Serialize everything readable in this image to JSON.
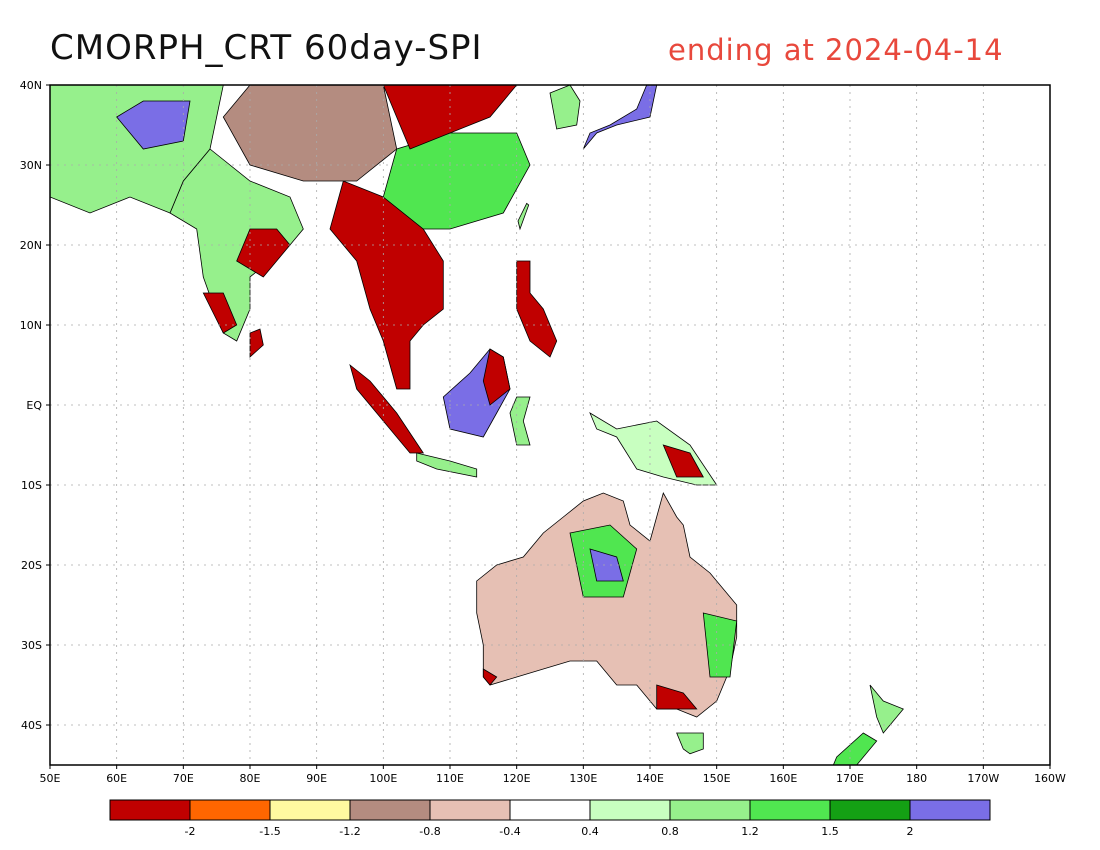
{
  "title": "CMORPH_CRT 60day-SPI",
  "subtitle": "ending at 2024-04-14",
  "colors": {
    "frame": "#000000",
    "grid": "#aaaaaa",
    "title_right": "#e8483c",
    "coast": "#000000"
  },
  "map": {
    "lon_range": [
      50,
      200
    ],
    "lat_range": [
      -45,
      40
    ],
    "x_ticks": [
      {
        "lon": 50,
        "label": "50E"
      },
      {
        "lon": 60,
        "label": "60E"
      },
      {
        "lon": 70,
        "label": "70E"
      },
      {
        "lon": 80,
        "label": "80E"
      },
      {
        "lon": 90,
        "label": "90E"
      },
      {
        "lon": 100,
        "label": "100E"
      },
      {
        "lon": 110,
        "label": "110E"
      },
      {
        "lon": 120,
        "label": "120E"
      },
      {
        "lon": 130,
        "label": "130E"
      },
      {
        "lon": 140,
        "label": "140E"
      },
      {
        "lon": 150,
        "label": "150E"
      },
      {
        "lon": 160,
        "label": "160E"
      },
      {
        "lon": 170,
        "label": "170E"
      },
      {
        "lon": 180,
        "label": "180"
      },
      {
        "lon": 190,
        "label": "170W"
      },
      {
        "lon": 200,
        "label": "160W"
      }
    ],
    "y_ticks": [
      {
        "lat": 40,
        "label": "40N"
      },
      {
        "lat": 30,
        "label": "30N"
      },
      {
        "lat": 20,
        "label": "20N"
      },
      {
        "lat": 10,
        "label": "10N"
      },
      {
        "lat": 0,
        "label": "EQ"
      },
      {
        "lat": -10,
        "label": "10S"
      },
      {
        "lat": -20,
        "label": "20S"
      },
      {
        "lat": -30,
        "label": "30S"
      },
      {
        "lat": -40,
        "label": "40S"
      }
    ]
  },
  "legend": {
    "colors": [
      "#c00000",
      "#ff6600",
      "#fffaa0",
      "#b48c80",
      "#e6c0b4",
      "#ffffff",
      "#c8ffc0",
      "#96f08c",
      "#50e650",
      "#14a014",
      "#7a6ee6"
    ],
    "labels": [
      "-2",
      "-1.5",
      "-1.2",
      "-0.8",
      "-0.4",
      "0.4",
      "0.8",
      "1.2",
      "1.5",
      "2"
    ]
  },
  "regions": [
    {
      "name": "india",
      "fill": "#96f08c",
      "points": [
        [
          68,
          24
        ],
        [
          72,
          22
        ],
        [
          73,
          16
        ],
        [
          76,
          9
        ],
        [
          78,
          8
        ],
        [
          80,
          12
        ],
        [
          80,
          16
        ],
        [
          86,
          20
        ],
        [
          88,
          22
        ],
        [
          86,
          26
        ],
        [
          80,
          28
        ],
        [
          74,
          32
        ],
        [
          70,
          28
        ]
      ]
    },
    {
      "name": "india-east-dry",
      "fill": "#c00000",
      "points": [
        [
          78,
          18
        ],
        [
          82,
          16
        ],
        [
          86,
          20
        ],
        [
          84,
          22
        ],
        [
          80,
          22
        ]
      ]
    },
    {
      "name": "india-south-dry",
      "fill": "#c00000",
      "points": [
        [
          73,
          14
        ],
        [
          76,
          9
        ],
        [
          78,
          10
        ],
        [
          76,
          14
        ]
      ]
    },
    {
      "name": "indochina",
      "fill": "#c00000",
      "points": [
        [
          92,
          22
        ],
        [
          96,
          18
        ],
        [
          98,
          12
        ],
        [
          100,
          8
        ],
        [
          102,
          2
        ],
        [
          104,
          2
        ],
        [
          104,
          8
        ],
        [
          106,
          10
        ],
        [
          109,
          12
        ],
        [
          109,
          18
        ],
        [
          106,
          22
        ],
        [
          100,
          26
        ],
        [
          94,
          28
        ]
      ]
    },
    {
      "name": "china-south",
      "fill": "#50e650",
      "points": [
        [
          100,
          26
        ],
        [
          106,
          22
        ],
        [
          110,
          22
        ],
        [
          118,
          24
        ],
        [
          122,
          30
        ],
        [
          120,
          34
        ],
        [
          110,
          34
        ],
        [
          102,
          32
        ]
      ]
    },
    {
      "name": "china-north-dry",
      "fill": "#c00000",
      "points": [
        [
          100,
          40
        ],
        [
          104,
          32
        ],
        [
          110,
          34
        ],
        [
          116,
          36
        ],
        [
          120,
          40
        ]
      ]
    },
    {
      "name": "tibet",
      "fill": "#b48c80",
      "points": [
        [
          76,
          36
        ],
        [
          80,
          30
        ],
        [
          88,
          28
        ],
        [
          96,
          28
        ],
        [
          102,
          32
        ],
        [
          100,
          40
        ],
        [
          80,
          40
        ]
      ]
    },
    {
      "name": "arabia-iran",
      "fill": "#96f08c",
      "points": [
        [
          50,
          40
        ],
        [
          50,
          26
        ],
        [
          56,
          24
        ],
        [
          62,
          26
        ],
        [
          68,
          24
        ],
        [
          70,
          28
        ],
        [
          74,
          32
        ],
        [
          76,
          40
        ]
      ]
    },
    {
      "name": "afghan-wet",
      "fill": "#7a6ee6",
      "points": [
        [
          60,
          36
        ],
        [
          64,
          32
        ],
        [
          70,
          33
        ],
        [
          71,
          38
        ],
        [
          64,
          38
        ]
      ]
    },
    {
      "name": "sumatra",
      "fill": "#c00000",
      "points": [
        [
          95,
          5
        ],
        [
          98,
          3
        ],
        [
          102,
          -1
        ],
        [
          106,
          -6
        ],
        [
          104,
          -6
        ],
        [
          100,
          -2
        ],
        [
          96,
          2
        ]
      ]
    },
    {
      "name": "java",
      "fill": "#96f08c",
      "points": [
        [
          105,
          -6
        ],
        [
          110,
          -7
        ],
        [
          114,
          -8
        ],
        [
          114,
          -9
        ],
        [
          108,
          -8
        ],
        [
          105,
          -7
        ]
      ]
    },
    {
      "name": "borneo",
      "fill": "#7a6ee6",
      "points": [
        [
          109,
          1
        ],
        [
          110,
          -3
        ],
        [
          115,
          -4
        ],
        [
          117,
          -1
        ],
        [
          119,
          2
        ],
        [
          118,
          6
        ],
        [
          116,
          7
        ],
        [
          113,
          4
        ]
      ]
    },
    {
      "name": "borneo-east-dry",
      "fill": "#c00000",
      "points": [
        [
          116,
          0
        ],
        [
          119,
          2
        ],
        [
          118,
          6
        ],
        [
          116,
          7
        ],
        [
          115,
          3
        ]
      ]
    },
    {
      "name": "sulawesi",
      "fill": "#96f08c",
      "points": [
        [
          119,
          -1
        ],
        [
          120,
          1
        ],
        [
          122,
          1
        ],
        [
          121,
          -2
        ],
        [
          122,
          -5
        ],
        [
          120,
          -5
        ]
      ]
    },
    {
      "name": "philippines",
      "fill": "#c00000",
      "points": [
        [
          120,
          18
        ],
        [
          122,
          18
        ],
        [
          122,
          14
        ],
        [
          124,
          12
        ],
        [
          126,
          8
        ],
        [
          125,
          6
        ],
        [
          122,
          8
        ],
        [
          120,
          12
        ]
      ]
    },
    {
      "name": "new-guinea",
      "fill": "#c8ffc0",
      "points": [
        [
          131,
          -1
        ],
        [
          135,
          -3
        ],
        [
          141,
          -2
        ],
        [
          146,
          -5
        ],
        [
          150,
          -10
        ],
        [
          147,
          -10
        ],
        [
          142,
          -9
        ],
        [
          138,
          -8
        ],
        [
          135,
          -4
        ],
        [
          132,
          -3
        ]
      ]
    },
    {
      "name": "new-guinea-dry",
      "fill": "#c00000",
      "points": [
        [
          142,
          -5
        ],
        [
          146,
          -6
        ],
        [
          148,
          -9
        ],
        [
          144,
          -9
        ]
      ]
    },
    {
      "name": "australia",
      "fill": "#e6c0b4",
      "points": [
        [
          114,
          -22
        ],
        [
          117,
          -20
        ],
        [
          121,
          -19
        ],
        [
          124,
          -16
        ],
        [
          127,
          -14
        ],
        [
          130,
          -12
        ],
        [
          133,
          -11
        ],
        [
          136,
          -12
        ],
        [
          137,
          -15
        ],
        [
          140,
          -17
        ],
        [
          142,
          -11
        ],
        [
          144,
          -14
        ],
        [
          145,
          -15
        ],
        [
          146,
          -19
        ],
        [
          149,
          -21
        ],
        [
          153,
          -25
        ],
        [
          153,
          -29
        ],
        [
          152,
          -33
        ],
        [
          150,
          -37
        ],
        [
          147,
          -39
        ],
        [
          144,
          -38
        ],
        [
          141,
          -38
        ],
        [
          138,
          -35
        ],
        [
          135,
          -35
        ],
        [
          132,
          -32
        ],
        [
          128,
          -32
        ],
        [
          124,
          -33
        ],
        [
          120,
          -34
        ],
        [
          116,
          -35
        ],
        [
          115,
          -34
        ],
        [
          115,
          -30
        ],
        [
          114,
          -26
        ]
      ]
    },
    {
      "name": "australia-north-wet",
      "fill": "#50e650",
      "points": [
        [
          128,
          -16
        ],
        [
          134,
          -15
        ],
        [
          138,
          -18
        ],
        [
          136,
          -24
        ],
        [
          130,
          -24
        ]
      ]
    },
    {
      "name": "australia-gulf-wet",
      "fill": "#7a6ee6",
      "points": [
        [
          131,
          -18
        ],
        [
          135,
          -19
        ],
        [
          136,
          -22
        ],
        [
          132,
          -22
        ]
      ]
    },
    {
      "name": "australia-east-wet",
      "fill": "#50e650",
      "points": [
        [
          148,
          -26
        ],
        [
          153,
          -27
        ],
        [
          152,
          -34
        ],
        [
          149,
          -34
        ]
      ]
    },
    {
      "name": "australia-southeast-dry",
      "fill": "#c00000",
      "points": [
        [
          141,
          -35
        ],
        [
          145,
          -36
        ],
        [
          147,
          -38
        ],
        [
          144,
          -38
        ],
        [
          141,
          -38
        ]
      ]
    },
    {
      "name": "australia-southwest-dry",
      "fill": "#c00000",
      "points": [
        [
          115,
          -33
        ],
        [
          117,
          -34
        ],
        [
          116,
          -35
        ],
        [
          115,
          -34
        ]
      ]
    },
    {
      "name": "tasmania",
      "fill": "#96f08c",
      "points": [
        [
          144,
          -41
        ],
        [
          148,
          -41
        ],
        [
          148,
          -43
        ],
        [
          146,
          -43.6
        ],
        [
          145,
          -43
        ]
      ]
    },
    {
      "name": "new-zealand-north",
      "fill": "#96f08c",
      "points": [
        [
          173,
          -35
        ],
        [
          175,
          -37
        ],
        [
          178,
          -38
        ],
        [
          177,
          -39
        ],
        [
          175,
          -41
        ],
        [
          174,
          -39
        ]
      ]
    },
    {
      "name": "new-zealand-south",
      "fill": "#50e650",
      "points": [
        [
          172,
          -41
        ],
        [
          174,
          -42
        ],
        [
          171,
          -45
        ],
        [
          167,
          -46
        ],
        [
          168,
          -44
        ]
      ]
    },
    {
      "name": "japan",
      "fill": "#7a6ee6",
      "points": [
        [
          130,
          32
        ],
        [
          132,
          34
        ],
        [
          135,
          35
        ],
        [
          140,
          36
        ],
        [
          141,
          40
        ],
        [
          140,
          41
        ],
        [
          138,
          37
        ],
        [
          134,
          35
        ],
        [
          131,
          34
        ]
      ]
    },
    {
      "name": "taiwan",
      "fill": "#96f08c",
      "points": [
        [
          120.5,
          22
        ],
        [
          121.8,
          25
        ],
        [
          121.5,
          25.2
        ],
        [
          120.2,
          23
        ]
      ]
    },
    {
      "name": "korea",
      "fill": "#96f08c",
      "points": [
        [
          126,
          34.5
        ],
        [
          129,
          35
        ],
        [
          129.5,
          38
        ],
        [
          128,
          40
        ],
        [
          125,
          39
        ]
      ]
    },
    {
      "name": "sri-lanka",
      "fill": "#c00000",
      "points": [
        [
          80,
          6
        ],
        [
          82,
          7.5
        ],
        [
          81.5,
          9.5
        ],
        [
          80,
          9
        ]
      ]
    }
  ]
}
